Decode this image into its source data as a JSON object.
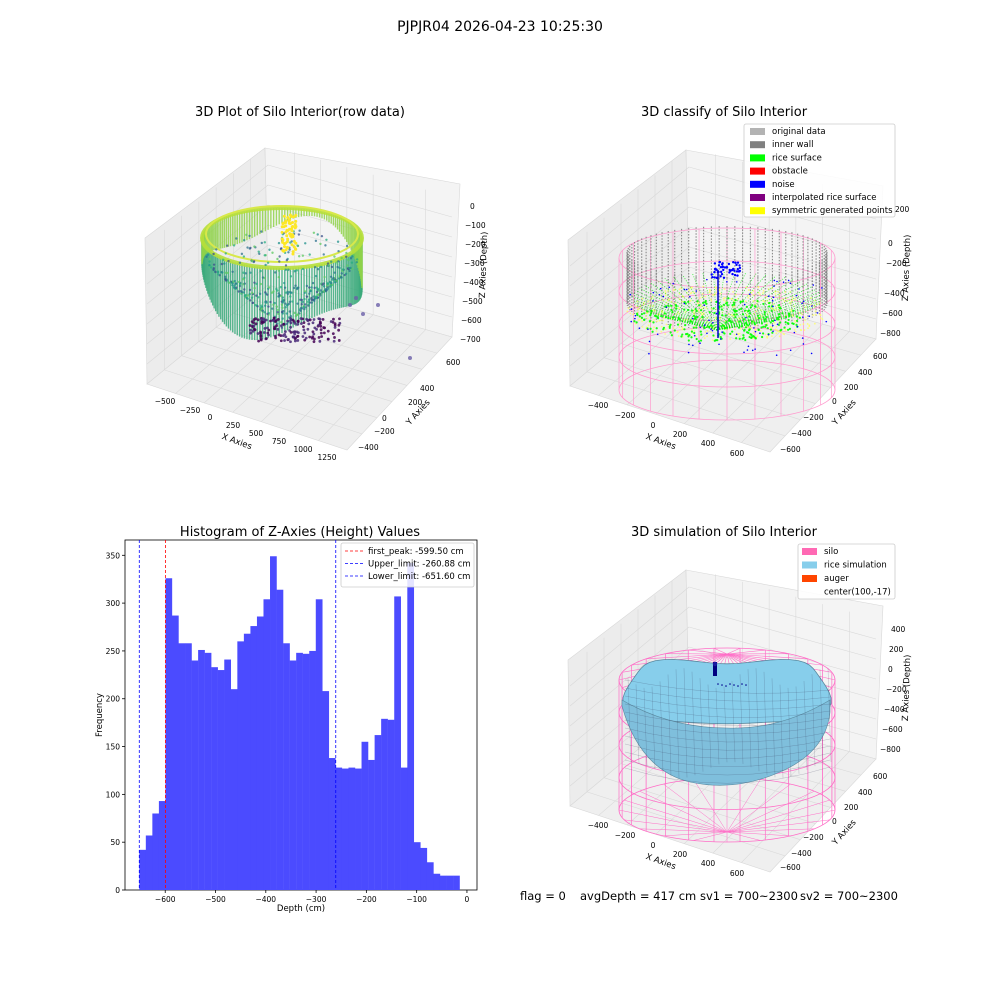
{
  "suptitle": "PJPJR04 2026-04-23 10:25:30",
  "panels": {
    "raw": {
      "title": "3D Plot of Silo Interior(row data)",
      "xlabel": "X Axies",
      "ylabel": "Y Axies",
      "zlabel": "Z Axies (Depth)",
      "xticks": [
        "−500",
        "−250",
        "0",
        "250",
        "500",
        "750",
        "1000",
        "1250"
      ],
      "yticks": [
        "600",
        "400",
        "200",
        "0",
        "−200",
        "−400",
        "−600"
      ],
      "zticks": [
        "0",
        "−100",
        "−200",
        "−300",
        "−400",
        "−500",
        "−600",
        "−700"
      ]
    },
    "classify": {
      "title": "3D classify of Silo Interior",
      "xlabel": "X Axies",
      "ylabel": "Y Axies",
      "zlabel": "Z Axies (Depth)",
      "xticks": [
        "−400",
        "−200",
        "0",
        "200",
        "400",
        "600"
      ],
      "yticks": [
        "600",
        "400",
        "200",
        "0",
        "−200",
        "−400",
        "−600"
      ],
      "zticks": [
        "200",
        "0",
        "−200",
        "−400",
        "−600",
        "−800"
      ],
      "legend": [
        {
          "label": "original data",
          "color": "#b3b3b3"
        },
        {
          "label": "inner wall",
          "color": "#808080"
        },
        {
          "label": "rice surface",
          "color": "#00ff00"
        },
        {
          "label": "obstacle",
          "color": "#ff0000"
        },
        {
          "label": "noise",
          "color": "#0000ff"
        },
        {
          "label": "interpolated rice surface",
          "color": "#800080"
        },
        {
          "label": "symmetric generated points",
          "color": "#ffff00"
        }
      ]
    },
    "simulation": {
      "title": "3D simulation of Silo Interior",
      "xlabel": "X Axies",
      "ylabel": "Y Axies",
      "zlabel": "Z Axies (Depth)",
      "xticks": [
        "−400",
        "−200",
        "0",
        "200",
        "400",
        "600"
      ],
      "yticks": [
        "600",
        "400",
        "200",
        "0",
        "−200",
        "−400",
        "−600"
      ],
      "zticks": [
        "400",
        "200",
        "0",
        "−200",
        "−400",
        "−600",
        "−800"
      ],
      "legend": [
        {
          "label": "silo",
          "color": "#ff69b4"
        },
        {
          "label": "rice simulation",
          "color": "#87ceeb"
        },
        {
          "label": "auger",
          "color": "#ff4500"
        },
        {
          "label": "center(100,-17)",
          "color": "none"
        }
      ]
    }
  },
  "chart_data": {
    "type": "bar",
    "title": "Histogram of Z-Axies (Height) Values",
    "xlabel": "Depth (cm)",
    "ylabel": "Frequency",
    "bar_color": "#4b4bff",
    "xlim": [
      -680,
      20
    ],
    "ylim": [
      0,
      366
    ],
    "xticks": [
      -600,
      -500,
      -400,
      -300,
      -200,
      -100,
      0
    ],
    "yticks": [
      0,
      50,
      100,
      150,
      200,
      250,
      300,
      350
    ],
    "bin_start": -651.6,
    "bin_width": 13.0,
    "values": [
      42,
      57,
      80,
      93,
      326,
      287,
      258,
      258,
      240,
      251,
      248,
      233,
      230,
      241,
      210,
      260,
      268,
      276,
      286,
      304,
      349,
      314,
      258,
      240,
      248,
      247,
      250,
      304,
      208,
      138,
      128,
      127,
      128,
      127,
      155,
      136,
      162,
      179,
      178,
      307,
      128,
      342,
      50,
      44,
      29,
      17,
      15,
      15,
      15
    ],
    "annotations": [
      {
        "label": "first_peak: -599.50 cm",
        "x": -599.5,
        "color": "#ff0000"
      },
      {
        "label": "Upper_limit: -260.88 cm",
        "x": -260.88,
        "color": "#0000ff"
      },
      {
        "label": "Lower_limit: -651.60 cm",
        "x": -651.6,
        "color": "#0000ff"
      }
    ],
    "legend_position": "upper right"
  },
  "status": {
    "flag": "flag = 0",
    "avgDepth": "avgDepth = 417 cm",
    "sv1": "sv1 = 700~2300",
    "sv2": "sv2 = 700~2300"
  }
}
